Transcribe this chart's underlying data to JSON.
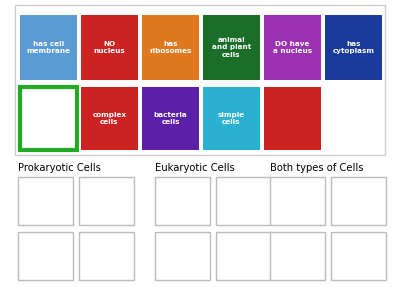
{
  "background_color": "#ffffff",
  "card_area_bg": "#ffffff",
  "card_area_border": "#cccccc",
  "top_cards_row1": [
    {
      "text": "has cell\nmembrane",
      "color": "#5b9bd5"
    },
    {
      "text": "NO\nnucleus",
      "color": "#cc2222"
    },
    {
      "text": "has\nribosomes",
      "color": "#e07820"
    },
    {
      "text": "animal\nand plant\ncells",
      "color": "#1a6e2a"
    },
    {
      "text": "DO have\na nucleus",
      "color": "#9b30b0"
    },
    {
      "text": "has\ncytoplasm",
      "color": "#1a3a9c"
    }
  ],
  "top_cards_row2": [
    {
      "text": "",
      "color": "#ffffff",
      "border_color": "#22aa22",
      "border_lw": 3
    },
    {
      "text": "complex\ncells",
      "color": "#cc2222",
      "border_color": null
    },
    {
      "text": "bacteria\ncells",
      "color": "#5b1fa8",
      "border_color": null
    },
    {
      "text": "simple\ncells",
      "color": "#2ab0d0",
      "border_color": null
    },
    {
      "text": "",
      "color": "#cc2222",
      "border_color": null
    }
  ],
  "category_labels": [
    "Prokaryotic Cells",
    "Eukaryotic Cells",
    "Both types of Cells"
  ],
  "drop_box_border": "#bbbbbb",
  "drop_box_face": "#ffffff"
}
